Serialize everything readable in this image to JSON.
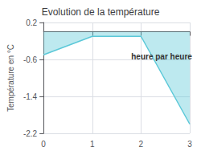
{
  "chart_data": {
    "type": "line",
    "title": "Evolution de la température",
    "ylabel": "Température en °C",
    "x": [
      0,
      1,
      2,
      3
    ],
    "values": [
      -0.5,
      -0.1,
      -0.1,
      -2.0
    ],
    "color": "#5bc8d8",
    "xlim": [
      0,
      3
    ],
    "xticks": [
      0,
      1,
      2,
      3
    ],
    "ylim": [
      -2.2,
      0.2
    ],
    "yticks": [
      0.2,
      -0.6,
      -1.4,
      -2.2
    ],
    "grid": true,
    "annotations": [
      {
        "text": "heure par heure",
        "x": 1.8,
        "y": -0.45
      }
    ]
  }
}
